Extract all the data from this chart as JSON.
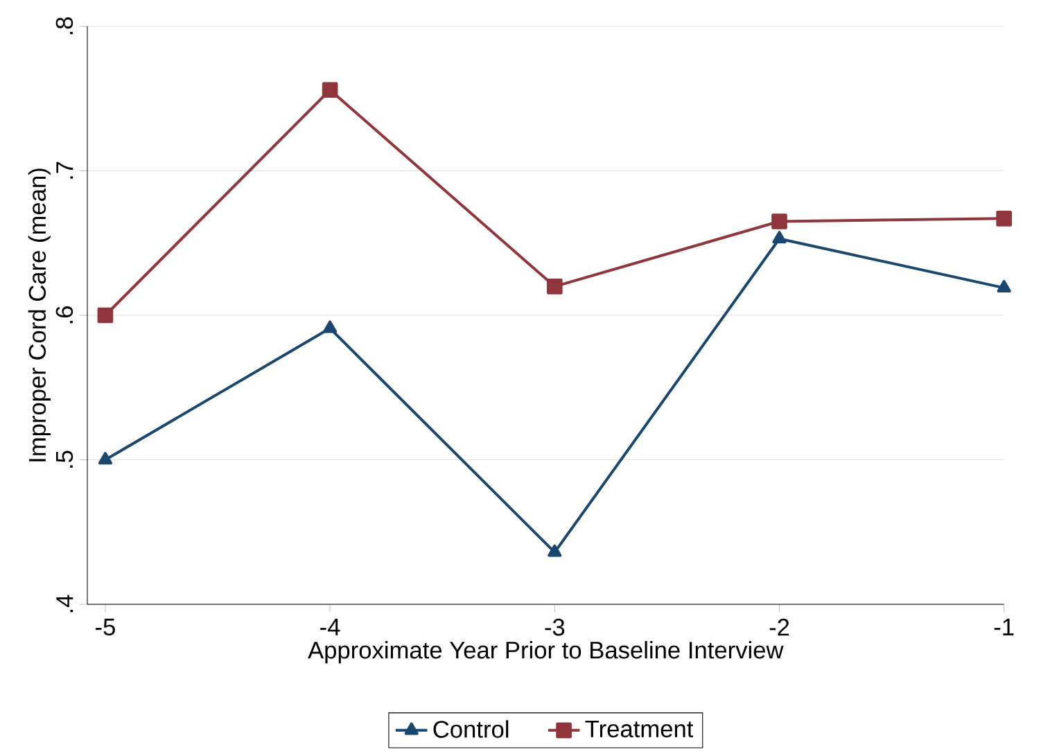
{
  "chart_data": {
    "type": "line",
    "xlabel": "Approximate Year Prior to Baseline Interview",
    "ylabel": "Improper Cord Care (mean)",
    "x": [
      -5,
      -4,
      -3,
      -2,
      -1
    ],
    "series": [
      {
        "name": "Control",
        "color": "#1a476f",
        "marker": "triangle",
        "values": [
          0.5,
          0.591,
          0.436,
          0.653,
          0.619
        ]
      },
      {
        "name": "Treatment",
        "color": "#90353b",
        "marker": "square",
        "values": [
          0.6,
          0.756,
          0.62,
          0.665,
          0.667
        ]
      }
    ],
    "xlim": [
      -5.08,
      -1
    ],
    "xticks": [
      -5,
      -4,
      -3,
      -2,
      -1
    ],
    "ylim": [
      0.4,
      0.8
    ],
    "yticks": [
      {
        "value": 0.4,
        "label": ".4"
      },
      {
        "value": 0.5,
        "label": ".5"
      },
      {
        "value": 0.6,
        "label": ".6"
      },
      {
        "value": 0.7,
        "label": ".7"
      },
      {
        "value": 0.8,
        "label": ".8"
      }
    ],
    "grid": "y",
    "legend": "bottom",
    "line_style": "solid"
  }
}
